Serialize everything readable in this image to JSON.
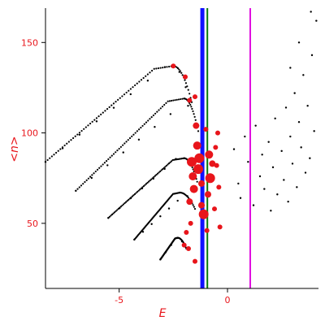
{
  "chart_data": {
    "type": "scatter",
    "xlabel": "E",
    "ylabel": "<n>",
    "xlim": [
      -8.4,
      4.2
    ],
    "ylim": [
      14,
      169
    ],
    "grid": false,
    "axis_color": "#000000",
    "label_color": "#e8151b",
    "x_ticks": [
      {
        "value": -5,
        "label": "-5"
      },
      {
        "value": 0,
        "label": "0"
      }
    ],
    "y_ticks": [
      {
        "value": 50,
        "label": "50"
      },
      {
        "value": 100,
        "label": "100"
      },
      {
        "value": 150,
        "label": "150"
      }
    ],
    "vertical_lines": [
      {
        "x": -1.16,
        "color": "#1010ff"
      },
      {
        "x": -0.93,
        "color": "#0a7a0a"
      },
      {
        "x": 1.05,
        "color": "#e010e0"
      }
    ],
    "bands": [
      {
        "start": [
          -8.4,
          84
        ],
        "peak": [
          -2.5,
          137
        ],
        "end": [
          -1.65,
          117
        ]
      },
      {
        "start": [
          -7.0,
          68
        ],
        "peak": [
          -2.0,
          119
        ],
        "end": [
          -1.35,
          101
        ]
      },
      {
        "start": [
          -5.5,
          53
        ],
        "peak": [
          -2.0,
          86
        ],
        "end": [
          -1.4,
          73
        ]
      },
      {
        "start": [
          -4.3,
          41
        ],
        "peak": [
          -2.2,
          67
        ],
        "end": [
          -1.5,
          58
        ]
      },
      {
        "start": [
          -3.1,
          30
        ],
        "peak": [
          -2.3,
          42
        ],
        "end": [
          -1.9,
          36
        ]
      }
    ],
    "series": [
      {
        "color": "#000000",
        "points": [
          [
            -8.4,
            84.0
          ],
          [
            -7.61,
            91.5
          ],
          [
            -6.83,
            99.0
          ],
          [
            -6.04,
            106.4
          ],
          [
            -5.25,
            113.9
          ],
          [
            -4.47,
            121.4
          ],
          [
            -3.68,
            128.9
          ],
          [
            -2.89,
            136.4
          ],
          [
            -2.5,
            137.0
          ],
          [
            -2.22,
            133.7
          ],
          [
            -1.93,
            125.3
          ],
          [
            -7.0,
            68.0
          ],
          [
            -6.27,
            75.1
          ],
          [
            -5.54,
            82.1
          ],
          [
            -4.81,
            89.2
          ],
          [
            -4.09,
            96.3
          ],
          [
            -3.36,
            103.3
          ],
          [
            -2.63,
            110.4
          ],
          [
            -2.0,
            119.0
          ],
          [
            -1.82,
            115.0
          ],
          [
            -5.5,
            53.0
          ],
          [
            -4.98,
            58.4
          ],
          [
            -4.46,
            63.9
          ],
          [
            -3.94,
            69.3
          ],
          [
            -3.42,
            74.7
          ],
          [
            -2.9,
            80.1
          ],
          [
            -2.38,
            85.6
          ],
          [
            -2.0,
            86.0
          ],
          [
            -1.7,
            83.0
          ],
          [
            -4.3,
            41.0
          ],
          [
            -3.9,
            45.3
          ],
          [
            -3.5,
            49.6
          ],
          [
            -3.1,
            53.9
          ],
          [
            -2.7,
            58.2
          ],
          [
            -2.3,
            62.5
          ],
          [
            -2.2,
            67.0
          ],
          [
            -1.85,
            65.0
          ],
          [
            -3.1,
            30.0
          ],
          [
            -2.85,
            34.0
          ],
          [
            -2.6,
            38.0
          ],
          [
            -2.3,
            42.0
          ],
          [
            -2.1,
            40.0
          ],
          [
            0.3,
            91.0
          ],
          [
            0.5,
            72.0
          ],
          [
            0.6,
            64.0
          ],
          [
            0.8,
            98.0
          ],
          [
            0.95,
            84.0
          ],
          [
            1.2,
            60.0
          ],
          [
            1.3,
            104.0
          ],
          [
            1.5,
            76.0
          ],
          [
            1.6,
            88.0
          ],
          [
            1.7,
            69.0
          ],
          [
            1.9,
            95.0
          ],
          [
            2.0,
            57.0
          ],
          [
            2.1,
            81.0
          ],
          [
            2.2,
            108.0
          ],
          [
            2.3,
            66.0
          ],
          [
            2.5,
            90.0
          ],
          [
            2.6,
            74.0
          ],
          [
            2.7,
            114.0
          ],
          [
            2.8,
            62.0
          ],
          [
            2.9,
            98.0
          ],
          [
            3.0,
            83.0
          ],
          [
            3.1,
            122.0
          ],
          [
            3.2,
            70.0
          ],
          [
            3.3,
            106.0
          ],
          [
            3.4,
            92.0
          ],
          [
            3.5,
            132.0
          ],
          [
            3.6,
            78.0
          ],
          [
            3.7,
            115.0
          ],
          [
            3.8,
            86.0
          ],
          [
            3.9,
            143.0
          ],
          [
            4.0,
            101.0
          ],
          [
            4.1,
            162.0
          ],
          [
            3.85,
            167.0
          ],
          [
            3.3,
            150.0
          ],
          [
            2.9,
            136.0
          ]
        ]
      },
      {
        "color": "#e8151b",
        "points": [
          [
            -2.5,
            137.0,
            3
          ],
          [
            -1.95,
            131.0,
            3
          ],
          [
            -1.75,
            118.0,
            3
          ],
          [
            -1.5,
            120.0,
            3
          ],
          [
            -1.45,
            104.0,
            4
          ],
          [
            -1.4,
            93.0,
            5
          ],
          [
            -1.3,
            86.0,
            6
          ],
          [
            -1.2,
            72.0,
            4
          ],
          [
            -1.65,
            84.0,
            6
          ],
          [
            -1.6,
            76.0,
            5
          ],
          [
            -1.75,
            62.0,
            4
          ],
          [
            -1.7,
            50.0,
            3
          ],
          [
            -1.9,
            45.0,
            3
          ],
          [
            -1.8,
            36.0,
            3
          ],
          [
            -2.0,
            38.0,
            3
          ],
          [
            -1.5,
            29.0,
            3
          ],
          [
            -1.2,
            60.0,
            4
          ],
          [
            -1.1,
            55.0,
            6
          ],
          [
            -0.9,
            66.0,
            4
          ],
          [
            -0.8,
            75.0,
            6
          ],
          [
            -0.7,
            83.0,
            4
          ],
          [
            -0.55,
            92.0,
            3
          ],
          [
            -0.45,
            100.0,
            3
          ],
          [
            -0.6,
            58.0,
            3
          ],
          [
            -0.4,
            70.0,
            3
          ],
          [
            -0.35,
            48.0,
            3
          ],
          [
            -1.0,
            102.0,
            3
          ],
          [
            -0.85,
            88.0,
            5
          ],
          [
            -1.55,
            69.0,
            5
          ],
          [
            -1.35,
            80.0,
            6
          ],
          [
            -0.95,
            46.0,
            3
          ],
          [
            -0.5,
            82.0,
            3
          ]
        ]
      }
    ]
  }
}
